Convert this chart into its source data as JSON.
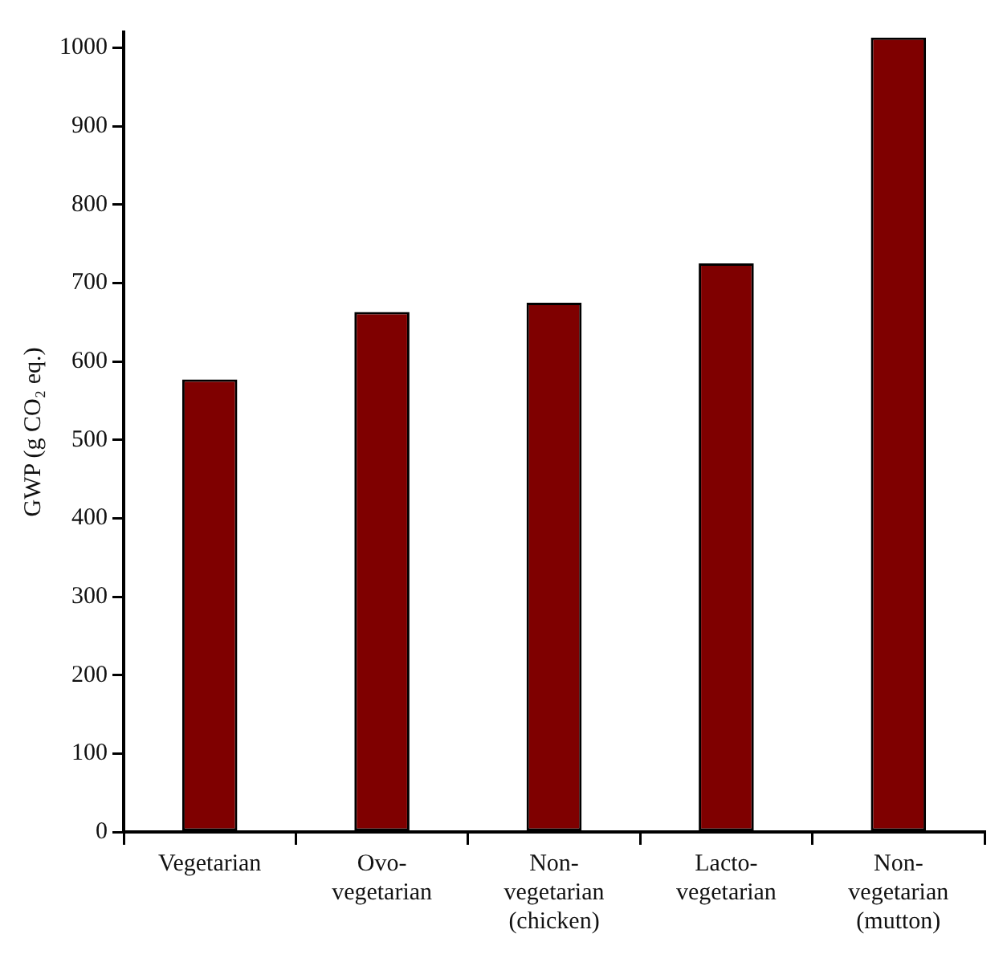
{
  "chart_data": {
    "type": "bar",
    "ylabel": "GWP (g CO₂ eq.)",
    "categories": [
      "Vegetarian",
      "Ovo-vegetarian",
      "Non-vegetarian (chicken)",
      "Lacto-vegetarian",
      "Non-vegetarian (mutton)"
    ],
    "values": [
      577,
      663,
      675,
      725,
      1013
    ],
    "color": "#7f0000",
    "ylim": [
      0,
      1020
    ],
    "yticks": [
      0,
      100,
      200,
      300,
      400,
      500,
      600,
      700,
      800,
      900,
      1000
    ],
    "grid": false,
    "legend": false
  }
}
